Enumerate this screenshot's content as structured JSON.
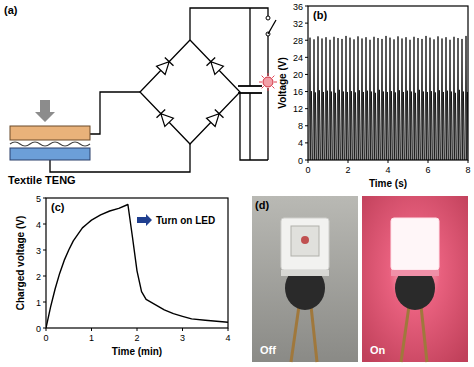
{
  "circuit": {
    "panel_label": "(a)",
    "teng_label": "Textile TENG"
  },
  "chart_data": [
    {
      "type": "stem",
      "title": "(b)",
      "x_label": "Time (s)",
      "y_label": "Voltage (V)",
      "x": [
        0.1,
        0.17,
        0.3,
        0.37,
        0.5,
        0.57,
        0.7,
        0.77,
        0.9,
        0.97,
        1.1,
        1.17,
        1.3,
        1.37,
        1.5,
        1.57,
        1.7,
        1.77,
        1.9,
        1.97,
        2.1,
        2.17,
        2.3,
        2.37,
        2.5,
        2.57,
        2.7,
        2.77,
        2.9,
        2.97,
        3.1,
        3.17,
        3.3,
        3.37,
        3.5,
        3.57,
        3.7,
        3.77,
        3.9,
        3.97,
        4.1,
        4.17,
        4.3,
        4.37,
        4.5,
        4.57,
        4.7,
        4.77,
        4.9,
        4.97,
        5.1,
        5.17,
        5.3,
        5.37,
        5.5,
        5.57,
        5.7,
        5.77,
        5.9,
        5.97,
        6.1,
        6.17,
        6.3,
        6.37,
        6.5,
        6.57,
        6.7,
        6.77,
        6.9,
        6.97,
        7.1,
        7.17,
        7.3,
        7.37,
        7.5,
        7.57,
        7.7,
        7.77,
        7.9,
        7.97
      ],
      "values": [
        28.6,
        16.1,
        28.2,
        15.8,
        28.9,
        16.3,
        28.4,
        15.9,
        28.7,
        16.2,
        28.1,
        16.0,
        28.8,
        15.7,
        28.5,
        16.4,
        28.3,
        16.0,
        29.0,
        15.9,
        28.6,
        16.1,
        28.2,
        15.8,
        28.9,
        16.3,
        28.4,
        15.9,
        28.7,
        16.2,
        28.1,
        16.0,
        28.8,
        15.7,
        28.5,
        16.4,
        28.3,
        16.0,
        29.0,
        15.9,
        28.6,
        16.1,
        28.2,
        15.8,
        28.9,
        16.3,
        28.4,
        15.9,
        28.7,
        16.2,
        28.1,
        16.0,
        28.8,
        15.7,
        28.5,
        16.4,
        28.3,
        16.0,
        29.0,
        15.9,
        28.6,
        16.1,
        28.2,
        15.8,
        28.9,
        16.3,
        28.4,
        15.9,
        28.7,
        16.2,
        28.1,
        16.0,
        28.8,
        15.7,
        28.5,
        16.4,
        28.3,
        16.0,
        29.0,
        15.9
      ],
      "color": "#000000",
      "xlim": [
        0,
        8
      ],
      "ylim": [
        0,
        36
      ],
      "xticks": [
        0,
        2,
        4,
        6,
        8
      ],
      "yticks": [
        0,
        4,
        8,
        12,
        16,
        20,
        24,
        28,
        32,
        36
      ]
    },
    {
      "type": "line",
      "title": "(c)",
      "x_label": "Time (min)",
      "y_label": "Charged voltage (V)",
      "x": [
        0,
        0.1,
        0.2,
        0.3,
        0.4,
        0.5,
        0.6,
        0.7,
        0.8,
        0.9,
        1.0,
        1.2,
        1.4,
        1.6,
        1.8,
        1.9,
        2.0,
        2.1,
        2.2,
        2.4,
        2.6,
        2.8,
        3.0,
        3.2,
        3.5,
        4.0
      ],
      "values": [
        0,
        0.8,
        1.5,
        2.1,
        2.6,
        3.0,
        3.35,
        3.6,
        3.85,
        4.0,
        4.15,
        4.35,
        4.5,
        4.6,
        4.75,
        3.5,
        2.2,
        1.4,
        1.1,
        0.9,
        0.7,
        0.55,
        0.45,
        0.35,
        0.3,
        0.22
      ],
      "color": "#000000",
      "xlim": [
        0,
        4
      ],
      "ylim": [
        0,
        5
      ],
      "xticks": [
        0,
        1,
        2,
        3,
        4
      ],
      "yticks": [
        0,
        1,
        2,
        3,
        4,
        5
      ],
      "annotation": "Turn on LED"
    }
  ],
  "photos": {
    "panel_label": "(d)",
    "labels": [
      "Off",
      "On"
    ]
  }
}
